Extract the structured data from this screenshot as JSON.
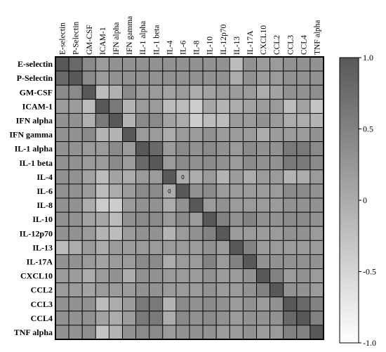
{
  "chart_data": {
    "type": "heatmap",
    "title": "",
    "xlabel": "",
    "ylabel": "",
    "labels": [
      "E-selectin",
      "P-Selectin",
      "GM-CSF",
      "ICAM-1",
      "IFN alpha",
      "IFN gamma",
      "IL-1 alpha",
      "IL-1 beta",
      "IL-4",
      "IL-6",
      "IL-8",
      "IL-10",
      "IL-12p70",
      "IL-13",
      "IL-17A",
      "CXCL10",
      "CCL2",
      "CCL3",
      "CCL4",
      "TNF alpha"
    ],
    "values": [
      [
        1.0,
        0.8,
        0.4,
        0.2,
        0.3,
        0.3,
        0.3,
        0.3,
        0.3,
        0.3,
        0.3,
        0.3,
        0.3,
        -0.2,
        0.3,
        0.2,
        0.2,
        0.3,
        0.3,
        0.3
      ],
      [
        0.8,
        1.0,
        0.4,
        0.2,
        0.3,
        0.3,
        0.3,
        0.3,
        0.3,
        0.3,
        0.3,
        0.3,
        0.3,
        0.0,
        0.3,
        0.2,
        0.2,
        0.3,
        0.3,
        0.3
      ],
      [
        0.4,
        0.4,
        1.0,
        -0.2,
        -0.05,
        0.4,
        0.2,
        0.2,
        0.1,
        0.2,
        0.0,
        0.1,
        0.2,
        0.2,
        0.2,
        0.0,
        0.1,
        0.3,
        0.3,
        0.35
      ],
      [
        0.2,
        0.2,
        -0.2,
        1.0,
        0.6,
        -0.1,
        0.2,
        0.2,
        -0.2,
        -0.2,
        -0.4,
        0.05,
        -0.1,
        0.0,
        0.1,
        0.2,
        0.2,
        -0.2,
        0.1,
        -0.3
      ],
      [
        0.3,
        0.3,
        -0.05,
        0.6,
        1.0,
        -0.1,
        0.4,
        0.4,
        0.1,
        0.0,
        -0.4,
        -0.2,
        -0.2,
        0.2,
        0.2,
        0.3,
        0.2,
        0.0,
        0.0,
        -0.1
      ],
      [
        0.3,
        0.3,
        0.4,
        -0.1,
        -0.1,
        1.0,
        0.2,
        0.2,
        0.0,
        0.2,
        0.2,
        0.3,
        0.2,
        0.2,
        0.2,
        0.0,
        0.2,
        0.2,
        0.2,
        0.3
      ],
      [
        0.3,
        0.3,
        0.2,
        0.2,
        0.4,
        0.2,
        1.0,
        0.8,
        0.2,
        0.4,
        0.3,
        0.4,
        0.3,
        0.2,
        0.4,
        0.3,
        0.3,
        0.6,
        0.6,
        0.4
      ],
      [
        0.3,
        0.3,
        0.2,
        0.2,
        0.4,
        0.2,
        0.8,
        1.0,
        0.2,
        0.4,
        0.3,
        0.4,
        0.3,
        0.2,
        0.4,
        0.3,
        0.3,
        0.6,
        0.6,
        0.4
      ],
      [
        0.3,
        0.3,
        0.1,
        -0.2,
        0.1,
        0.0,
        0.2,
        0.2,
        1.0,
        0.0,
        0.0,
        0.2,
        -0.1,
        0.2,
        0.0,
        0.2,
        0.2,
        -0.1,
        0.0,
        0.2
      ],
      [
        0.3,
        0.3,
        0.2,
        -0.2,
        0.0,
        0.2,
        0.4,
        0.4,
        0.0,
        1.0,
        0.3,
        0.4,
        0.2,
        0.2,
        0.2,
        0.2,
        0.2,
        0.4,
        0.4,
        0.3
      ],
      [
        0.3,
        0.3,
        0.0,
        -0.4,
        -0.4,
        0.2,
        0.3,
        0.3,
        0.0,
        0.3,
        1.0,
        0.2,
        0.3,
        0.2,
        0.2,
        0.2,
        0.2,
        0.3,
        0.3,
        0.3
      ],
      [
        0.3,
        0.3,
        0.1,
        0.05,
        -0.2,
        0.3,
        0.4,
        0.4,
        0.2,
        0.4,
        0.2,
        1.0,
        0.5,
        0.3,
        0.5,
        0.3,
        0.3,
        0.4,
        0.4,
        0.3
      ],
      [
        0.3,
        0.3,
        0.2,
        -0.1,
        -0.2,
        0.2,
        0.3,
        0.3,
        -0.1,
        0.2,
        0.3,
        0.5,
        1.0,
        0.2,
        0.2,
        0.2,
        0.2,
        0.3,
        0.3,
        0.2
      ],
      [
        -0.2,
        0.0,
        0.2,
        0.0,
        0.2,
        0.2,
        0.2,
        0.2,
        0.2,
        0.2,
        0.2,
        0.3,
        0.2,
        1.0,
        0.5,
        0.2,
        0.2,
        0.2,
        0.2,
        0.2
      ],
      [
        0.3,
        0.3,
        0.2,
        0.1,
        0.2,
        0.2,
        0.4,
        0.4,
        0.0,
        0.2,
        0.2,
        0.5,
        0.2,
        0.5,
        1.0,
        0.3,
        0.3,
        0.3,
        0.3,
        0.3
      ],
      [
        0.2,
        0.2,
        0.0,
        0.2,
        0.3,
        0.0,
        0.3,
        0.3,
        0.2,
        0.2,
        0.2,
        0.3,
        0.2,
        0.2,
        0.3,
        1.0,
        0.5,
        0.2,
        0.3,
        0.2
      ],
      [
        0.2,
        0.2,
        0.1,
        0.2,
        0.2,
        0.2,
        0.3,
        0.3,
        0.2,
        0.2,
        0.2,
        0.3,
        0.2,
        0.2,
        0.3,
        0.5,
        1.0,
        0.3,
        0.3,
        0.2
      ],
      [
        0.3,
        0.3,
        0.3,
        -0.2,
        0.0,
        0.2,
        0.6,
        0.6,
        -0.1,
        0.4,
        0.3,
        0.4,
        0.3,
        0.2,
        0.3,
        0.2,
        0.3,
        1.0,
        0.8,
        0.5
      ],
      [
        0.3,
        0.3,
        0.3,
        0.1,
        0.0,
        0.2,
        0.6,
        0.6,
        0.0,
        0.4,
        0.3,
        0.4,
        0.3,
        0.2,
        0.3,
        0.3,
        0.3,
        0.8,
        1.0,
        0.5
      ],
      [
        0.3,
        0.3,
        0.35,
        -0.3,
        -0.1,
        0.3,
        0.4,
        0.4,
        0.2,
        0.3,
        0.3,
        0.3,
        0.2,
        0.2,
        0.3,
        0.2,
        0.2,
        0.5,
        0.5,
        1.0
      ]
    ],
    "annotations": [
      {
        "row": "IL-4",
        "col": "IL-6",
        "text": "0"
      },
      {
        "row": "IL-6",
        "col": "IL-4",
        "text": "0"
      }
    ],
    "colorbar": {
      "range": [
        -1.0,
        1.0
      ],
      "ticks": [
        {
          "value": 1.0,
          "label": "1.0"
        },
        {
          "value": 0.5,
          "label": "0.5"
        },
        {
          "value": 0.0,
          "label": "0"
        },
        {
          "value": -0.5,
          "label": "-0.5"
        },
        {
          "value": -1.0,
          "label": "-1.0"
        }
      ],
      "color_low": "#ffffff",
      "color_high": "#585858"
    },
    "grid": true
  }
}
